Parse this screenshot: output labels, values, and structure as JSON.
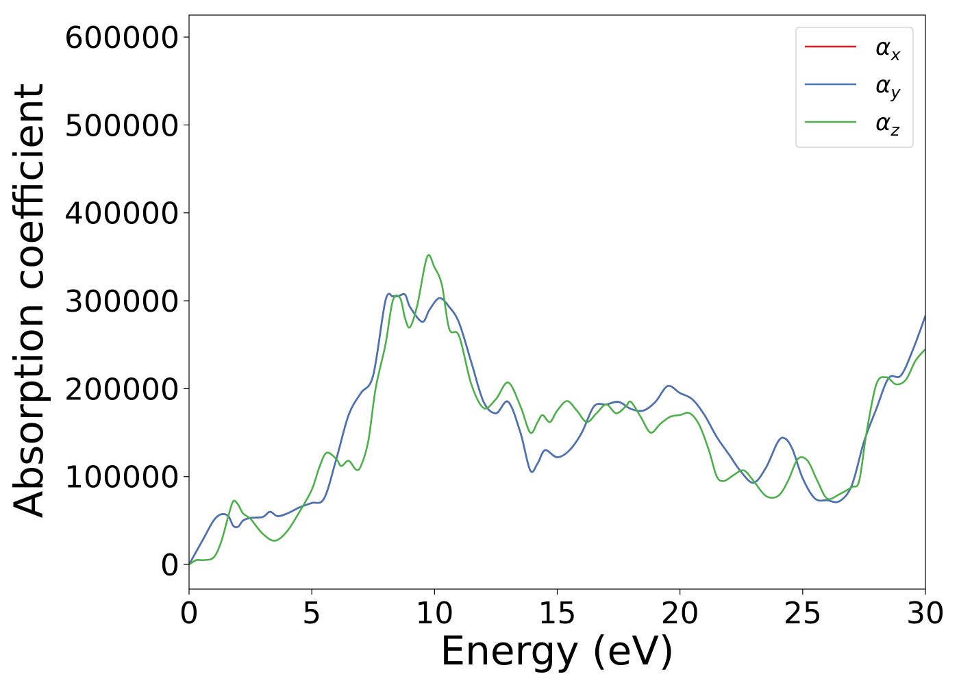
{
  "chart_data": {
    "type": "line",
    "title": "",
    "xlabel": "Energy (eV)",
    "ylabel": "Absorption coefficient",
    "xlim": [
      0,
      30
    ],
    "ylim": [
      -28000,
      625000
    ],
    "xticks": [
      0,
      5,
      10,
      15,
      20,
      25,
      30
    ],
    "xtick_labels": [
      "0",
      "5",
      "10",
      "15",
      "20",
      "25",
      "30"
    ],
    "yticks": [
      0,
      100000,
      200000,
      300000,
      400000,
      500000,
      600000
    ],
    "ytick_labels": [
      "0",
      "100000",
      "200000",
      "300000",
      "400000",
      "500000",
      "600000"
    ],
    "grid": false,
    "legend_position": "top-right",
    "series": [
      {
        "name": "α",
        "subscript": "x",
        "color": "#e41a1c",
        "x": [
          0,
          0.3,
          0.6,
          1.0,
          1.3,
          1.6,
          1.8,
          2.0,
          2.2,
          2.5,
          3.0,
          3.3,
          3.6,
          4.0,
          4.5,
          5.0,
          5.5,
          6.0,
          6.5,
          7.0,
          7.5,
          8.0,
          8.3,
          8.5,
          8.8,
          9.0,
          9.5,
          9.8,
          10.2,
          10.6,
          11.0,
          11.5,
          12.0,
          12.5,
          13.0,
          13.5,
          13.9,
          14.2,
          14.5,
          15.0,
          15.5,
          16.0,
          16.5,
          17.0,
          17.5,
          18.0,
          18.5,
          19.0,
          19.5,
          20.0,
          20.5,
          21.0,
          21.5,
          22.0,
          22.5,
          23.0,
          23.5,
          24.0,
          24.3,
          24.6,
          25.0,
          25.5,
          26.0,
          26.5,
          27.0,
          27.5,
          28.0,
          28.5,
          29.0,
          29.5,
          30.0
        ],
        "y": [
          0,
          15000,
          30000,
          50000,
          57000,
          55000,
          44000,
          43000,
          50000,
          53000,
          54000,
          60000,
          55000,
          58000,
          65000,
          70000,
          75000,
          120000,
          170000,
          195000,
          215000,
          300000,
          305000,
          305000,
          307000,
          293000,
          276000,
          290000,
          303000,
          293000,
          275000,
          230000,
          185000,
          172000,
          185000,
          150000,
          107000,
          115000,
          130000,
          122000,
          130000,
          150000,
          180000,
          182000,
          185000,
          177000,
          175000,
          185000,
          203000,
          195000,
          188000,
          170000,
          145000,
          125000,
          105000,
          93000,
          110000,
          140000,
          143000,
          130000,
          98000,
          75000,
          73000,
          72000,
          90000,
          140000,
          177000,
          212000,
          215000,
          245000,
          283000
        ]
      },
      {
        "name": "α",
        "subscript": "y",
        "color": "#4575b4",
        "x": [
          0,
          0.3,
          0.6,
          1.0,
          1.3,
          1.6,
          1.8,
          2.0,
          2.2,
          2.5,
          3.0,
          3.3,
          3.6,
          4.0,
          4.5,
          5.0,
          5.5,
          6.0,
          6.5,
          7.0,
          7.5,
          8.0,
          8.3,
          8.5,
          8.8,
          9.0,
          9.5,
          9.8,
          10.2,
          10.6,
          11.0,
          11.5,
          12.0,
          12.5,
          13.0,
          13.5,
          13.9,
          14.2,
          14.5,
          15.0,
          15.5,
          16.0,
          16.5,
          17.0,
          17.5,
          18.0,
          18.5,
          19.0,
          19.5,
          20.0,
          20.5,
          21.0,
          21.5,
          22.0,
          22.5,
          23.0,
          23.5,
          24.0,
          24.3,
          24.6,
          25.0,
          25.5,
          26.0,
          26.5,
          27.0,
          27.5,
          28.0,
          28.5,
          29.0,
          29.5,
          30.0
        ],
        "y": [
          0,
          15000,
          30000,
          50000,
          57000,
          55000,
          44000,
          43000,
          50000,
          53000,
          54000,
          60000,
          55000,
          58000,
          65000,
          70000,
          75000,
          120000,
          170000,
          195000,
          215000,
          300000,
          305000,
          305000,
          307000,
          293000,
          276000,
          290000,
          303000,
          293000,
          275000,
          230000,
          185000,
          172000,
          185000,
          150000,
          107000,
          115000,
          130000,
          122000,
          130000,
          150000,
          180000,
          182000,
          185000,
          177000,
          175000,
          185000,
          203000,
          195000,
          188000,
          170000,
          145000,
          125000,
          105000,
          93000,
          110000,
          140000,
          143000,
          130000,
          98000,
          75000,
          73000,
          72000,
          90000,
          140000,
          177000,
          212000,
          215000,
          245000,
          283000
        ]
      },
      {
        "name": "α",
        "subscript": "z",
        "color": "#4daf4a",
        "x": [
          0,
          0.3,
          0.6,
          1.0,
          1.3,
          1.6,
          1.8,
          2.0,
          2.2,
          2.5,
          3.0,
          3.5,
          4.0,
          4.5,
          5.0,
          5.3,
          5.6,
          6.0,
          6.2,
          6.5,
          6.8,
          7.0,
          7.3,
          7.6,
          8.0,
          8.3,
          8.6,
          8.8,
          9.0,
          9.3,
          9.7,
          10.0,
          10.3,
          10.6,
          11.0,
          11.5,
          12.0,
          12.5,
          13.0,
          13.5,
          13.9,
          14.2,
          14.4,
          14.7,
          15.0,
          15.4,
          15.8,
          16.2,
          16.6,
          17.0,
          17.4,
          17.8,
          18.0,
          18.4,
          18.8,
          19.2,
          19.6,
          20.0,
          20.4,
          20.8,
          21.2,
          21.5,
          21.8,
          22.2,
          22.6,
          23.0,
          23.5,
          24.0,
          24.4,
          24.8,
          25.2,
          25.6,
          26.0,
          26.5,
          27.0,
          27.3,
          27.6,
          28.0,
          28.4,
          28.8,
          29.2,
          29.6,
          30.0
        ],
        "y": [
          0,
          5000,
          5000,
          8000,
          25000,
          55000,
          72000,
          68000,
          58000,
          52000,
          35000,
          27000,
          38000,
          60000,
          85000,
          110000,
          127000,
          120000,
          112000,
          118000,
          108000,
          112000,
          140000,
          200000,
          250000,
          300000,
          303000,
          280000,
          270000,
          295000,
          350000,
          338000,
          318000,
          268000,
          260000,
          205000,
          178000,
          188000,
          207000,
          180000,
          150000,
          162000,
          170000,
          162000,
          175000,
          186000,
          175000,
          162000,
          172000,
          182000,
          172000,
          180000,
          185000,
          168000,
          150000,
          160000,
          168000,
          170000,
          172000,
          158000,
          128000,
          100000,
          95000,
          102000,
          107000,
          95000,
          78000,
          78000,
          95000,
          120000,
          118000,
          95000,
          75000,
          80000,
          88000,
          95000,
          150000,
          205000,
          213000,
          205000,
          210000,
          232000,
          245000
        ]
      }
    ]
  }
}
